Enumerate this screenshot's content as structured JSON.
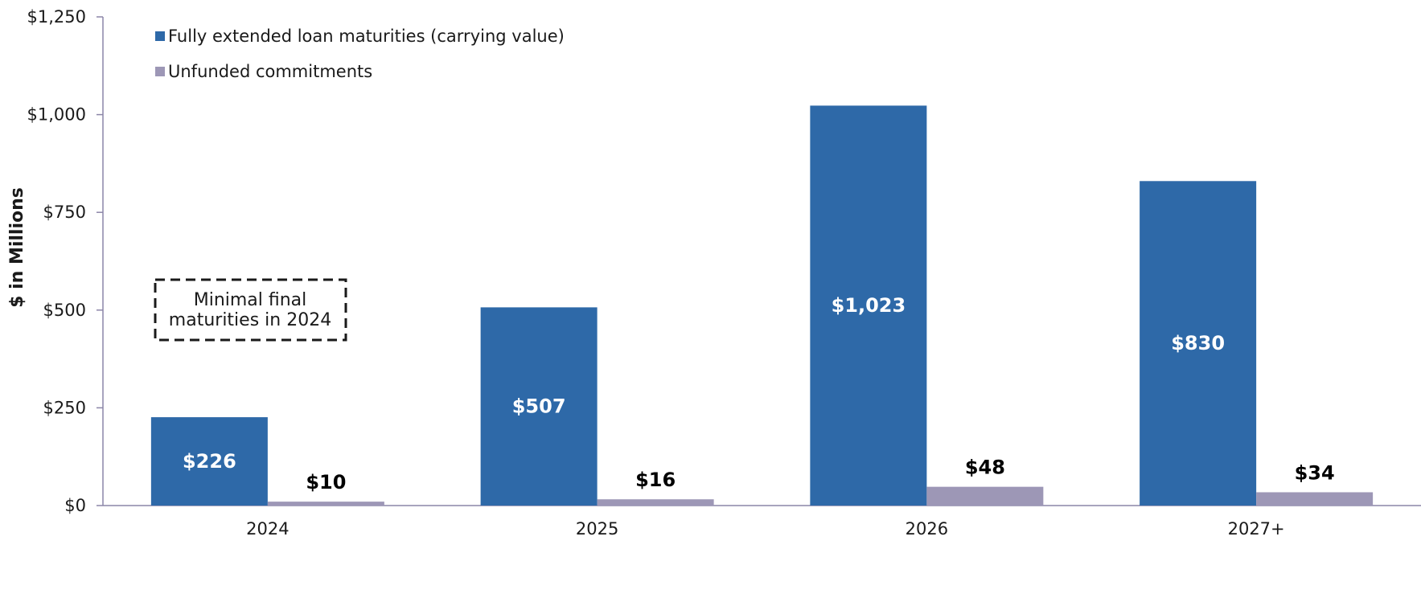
{
  "chart_data": {
    "type": "bar",
    "categories": [
      "2024",
      "2025",
      "2026",
      "2027+"
    ],
    "series": [
      {
        "name": "Fully extended loan maturities (carrying value)",
        "values": [
          226,
          507,
          1023,
          830
        ],
        "labels": [
          "$226",
          "$507",
          "$1,023",
          "$830"
        ],
        "color": "#2e69a8"
      },
      {
        "name": "Unfunded commitments",
        "values": [
          10,
          16,
          48,
          34
        ],
        "labels": [
          "$10",
          "$16",
          "$48",
          "$34"
        ],
        "color": "#9d97b6"
      }
    ],
    "ylabel": "$ in Millions",
    "xlabel": "",
    "ylim": [
      0,
      1250
    ],
    "yticks": [
      0,
      250,
      500,
      750,
      1000,
      1250
    ],
    "ytick_labels": [
      "$0",
      "$250",
      "$500",
      "$750",
      "$1,000",
      "$1,250"
    ],
    "grid": false,
    "legend_position": "top-left",
    "annotation": {
      "lines": [
        "Minimal final",
        "maturities in 2024"
      ]
    },
    "axis_color": "#8c86a8"
  }
}
